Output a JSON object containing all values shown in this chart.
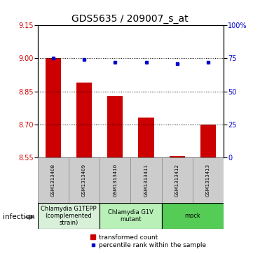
{
  "title": "GDS5635 / 209007_s_at",
  "samples": [
    "GSM1313408",
    "GSM1313409",
    "GSM1313410",
    "GSM1313411",
    "GSM1313412",
    "GSM1313413"
  ],
  "bar_values": [
    9.0,
    8.89,
    8.83,
    8.73,
    8.557,
    8.7
  ],
  "percentile_values": [
    75,
    74,
    72,
    72,
    71,
    72
  ],
  "ylim_left": [
    8.55,
    9.15
  ],
  "ylim_right": [
    0,
    100
  ],
  "yticks_left": [
    8.55,
    8.7,
    8.85,
    9.0,
    9.15
  ],
  "yticks_right": [
    0,
    25,
    50,
    75,
    100
  ],
  "bar_color": "#cc0000",
  "dot_color": "#0000cc",
  "bar_width": 0.5,
  "groups": [
    {
      "label": "Chlamydia G1TEPP\n(complemented\nstrain)",
      "samples": [
        0,
        1
      ],
      "color": "#d8f0d8"
    },
    {
      "label": "Chlamydia G1V\nmutant",
      "samples": [
        2,
        3
      ],
      "color": "#b8f0b8"
    },
    {
      "label": "mock",
      "samples": [
        4,
        5
      ],
      "color": "#55cc55"
    }
  ],
  "factor_label": "infection",
  "legend_bar_label": "transformed count",
  "legend_dot_label": "percentile rank within the sample",
  "title_fontsize": 10,
  "tick_fontsize": 7,
  "sample_fontsize": 5,
  "group_fontsize": 6,
  "legend_fontsize": 6.5
}
